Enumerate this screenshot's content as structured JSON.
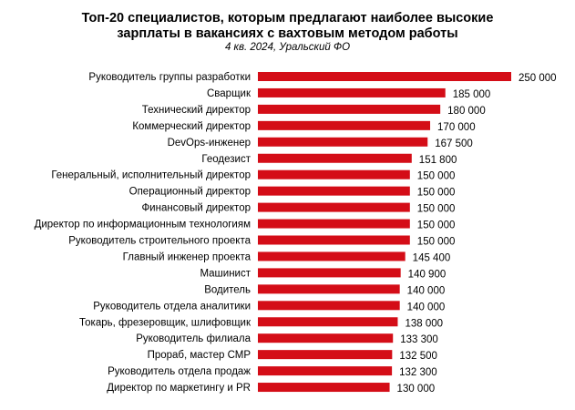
{
  "chart_data": {
    "type": "bar",
    "orientation": "horizontal",
    "title": "Топ-20 специалистов, которым предлагают наиболее высокие зарплаты в вакансиях с вахтовым методом работы",
    "title_lines": [
      "Топ-20 специалистов, которым предлагают наиболее высокие",
      "зарплаты в вакансиях с вахтовым методом работы"
    ],
    "subtitle": "4 кв. 2024, Уральский ФО",
    "categories": [
      "Руководитель группы разработки",
      "Сварщик",
      "Технический директор",
      "Коммерческий директор",
      "DevOps-инженер",
      "Геодезист",
      "Генеральный, исполнительный директор",
      "Операционный директор",
      "Финансовый директор",
      "Директор по информационным  технологиям",
      "Руководитель строительного проекта",
      "Главный инженер проекта",
      "Машинист",
      "Водитель",
      "Руководитель отдела аналитики",
      "Токарь, фрезеровщик, шлифовщик",
      "Руководитель филиала",
      "Прораб, мастер СМР",
      "Руководитель отдела продаж",
      "Директор по маркетингу и PR"
    ],
    "values": [
      250000,
      185000,
      180000,
      170000,
      167500,
      151800,
      150000,
      150000,
      150000,
      150000,
      150000,
      145400,
      140900,
      140000,
      140000,
      138000,
      133300,
      132500,
      132300,
      130000
    ],
    "data_labels": [
      "250 000",
      "185 000",
      "180 000",
      "170 000",
      "167 500",
      "151 800",
      "150 000",
      "150 000",
      "150 000",
      "150 000",
      "150 000",
      "145 400",
      "140 900",
      "140 000",
      "140 000",
      "138 000",
      "133 300",
      "132 500",
      "132 300",
      "130 000"
    ],
    "xlim": [
      0,
      250000
    ],
    "grid": false,
    "legend": "none",
    "bar_color": "#d40d17"
  }
}
